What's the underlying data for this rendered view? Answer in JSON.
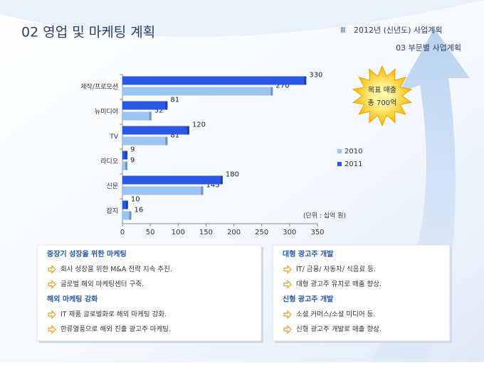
{
  "header": {
    "title": "02 영업 및 마케팅 계획",
    "section_number": "Ⅲ",
    "section_title": "2012년 (신년도) 사업계획",
    "subtitle": "03 부문별 사업계획"
  },
  "chart_data": {
    "type": "bar",
    "orientation": "horizontal",
    "categories": [
      "제작/프로모션",
      "뉴미디어",
      "TV",
      "라디오",
      "신문",
      "잡지"
    ],
    "series": [
      {
        "name": "2010",
        "color": "#9cc4f2",
        "values": [
          270,
          52,
          81,
          9,
          145,
          16
        ]
      },
      {
        "name": "2011",
        "color": "#2b57e4",
        "values": [
          330,
          81,
          120,
          9,
          180,
          10
        ]
      }
    ],
    "xlim": [
      0,
      350
    ],
    "xticks": [
      0,
      50,
      100,
      150,
      200,
      250,
      300,
      350
    ],
    "legend": "right",
    "unit_note": "(단위 : 십억 원)"
  },
  "badge": {
    "lines": [
      "목표 매출",
      "총 700억"
    ]
  },
  "panels": [
    {
      "sections": [
        {
          "heading": "중장기 성장을 위한 마케팅",
          "items": [
            "회사 성장을 위한 M&A 전략 지속 추진.",
            "글로벌 해외 마케팅센터 구축."
          ]
        },
        {
          "heading": "해외 마케팅 강화",
          "items": [
            "IT 제품 글로벌화로 해외 마케팅 강화.",
            "한류열풍으로 해외 진출 광고주 마케팅."
          ]
        }
      ]
    },
    {
      "sections": [
        {
          "heading": "대형 광고주 개발",
          "items": [
            "IT/ 금융/ 자동차/ 식음료 등.",
            "대형 광고주 유치로 매출 향상."
          ]
        },
        {
          "heading": "신형 광고주 개발",
          "items": [
            "소셜 커머스/소셜 미디어 등.",
            "신형 광고주 개발로 매출 향상."
          ]
        }
      ]
    }
  ]
}
